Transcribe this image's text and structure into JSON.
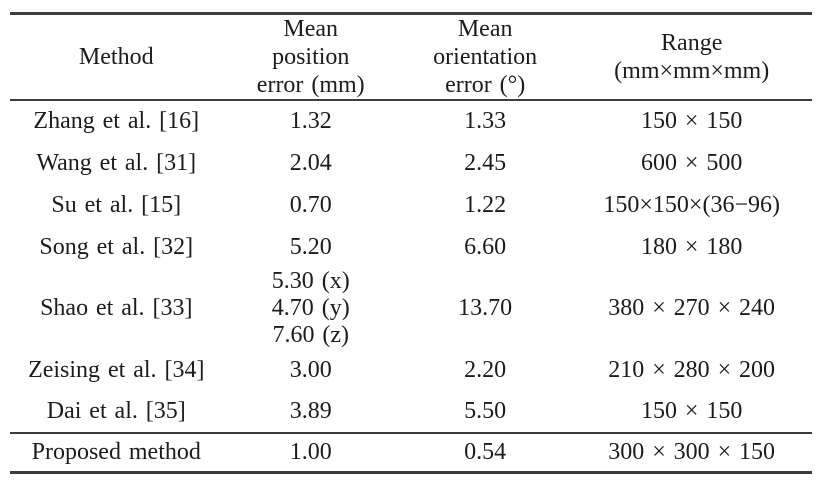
{
  "colors": {
    "text": "#1c1c1c",
    "rule": "#3d3d3d",
    "background": "#ffffff"
  },
  "table": {
    "columns": [
      {
        "label": "Method"
      },
      {
        "label": "Mean\nposition\nerror (mm)"
      },
      {
        "label": "Mean\norientation\nerror (°)"
      },
      {
        "label": "Range\n(mm×mm×mm)"
      }
    ],
    "rows": [
      {
        "method": "Zhang et al. [16]",
        "position_error": "1.32",
        "orientation_error": "1.33",
        "range": "150 × 150"
      },
      {
        "method": "Wang et al. [31]",
        "position_error": "2.04",
        "orientation_error": "2.45",
        "range": "600 × 500"
      },
      {
        "method": "Su et al. [15]",
        "position_error": "0.70",
        "orientation_error": "1.22",
        "range": "150×150×(36−96)"
      },
      {
        "method": "Song et al. [32]",
        "position_error": "5.20",
        "orientation_error": "6.60",
        "range": "180 × 180"
      },
      {
        "method": "Shao et al. [33]",
        "position_error": "5.30 (x)\n4.70 (y)\n7.60 (z)",
        "orientation_error": "13.70",
        "range": "380 × 270 × 240"
      },
      {
        "method": "Zeising et al. [34]",
        "position_error": "3.00",
        "orientation_error": "2.20",
        "range": "210 × 280 × 200"
      },
      {
        "method": "Dai et al. [35]",
        "position_error": "3.89",
        "orientation_error": "5.50",
        "range": "150 × 150"
      }
    ],
    "proposed": {
      "method": "Proposed method",
      "position_error": "1.00",
      "orientation_error": "0.54",
      "range": "300 × 300 × 150"
    }
  }
}
